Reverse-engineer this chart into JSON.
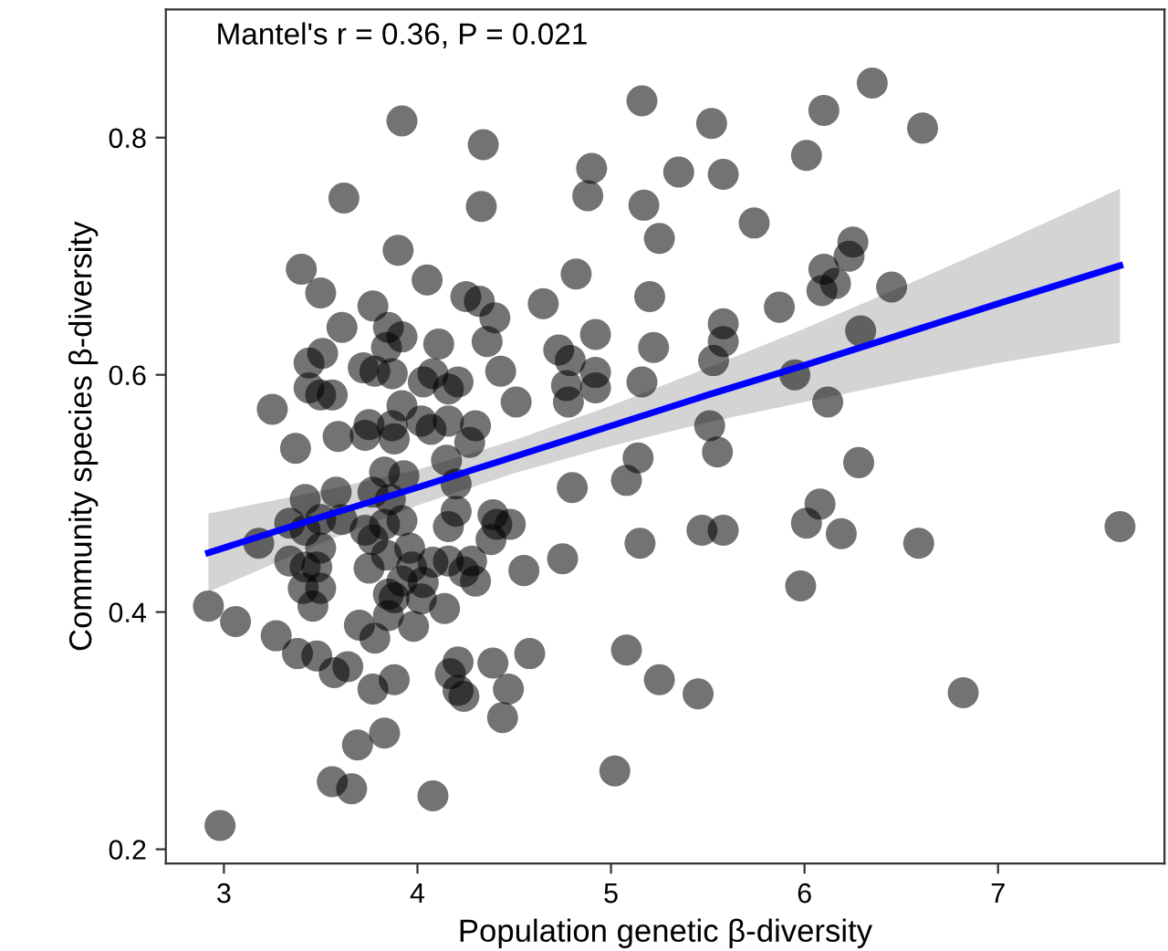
{
  "chart_data": {
    "type": "scatter",
    "xlabel": "Population genetic β-diversity",
    "ylabel": "Community species β-diversity",
    "annotations": [
      "Mantel's r = 0.36, P = 0.021"
    ],
    "xlim": [
      2.7,
      7.86
    ],
    "ylim": [
      0.188,
      0.908
    ],
    "xticks": [
      3,
      4,
      5,
      6,
      7
    ],
    "yticks": [
      0.2,
      0.4,
      0.6,
      0.8
    ],
    "grid": false,
    "legend": false,
    "marker": "circle",
    "series": [
      {
        "color": "#000000",
        "x": [
          3.92,
          4.34,
          3.62,
          4.33,
          3.9,
          3.4,
          4.05,
          3.5,
          4.25,
          4.32,
          3.77,
          4.4,
          3.61,
          3.85,
          3.92,
          4.11,
          4.36,
          3.84,
          3.51,
          3.44,
          3.72,
          3.78,
          3.87,
          4.08,
          4.43,
          4.03,
          4.21,
          3.44,
          3.5,
          3.56,
          4.16,
          3.25,
          3.92,
          3.75,
          3.87,
          4.02,
          4.16,
          4.3,
          3.59,
          3.73,
          3.88,
          4.07,
          3.37,
          4.27,
          5.16,
          6.1,
          5.52,
          4.9,
          5.35,
          5.58,
          6.01,
          4.88,
          5.17,
          5.25,
          5.74,
          4.82,
          4.65,
          5.2,
          6.1,
          6.16,
          6.09,
          6.25,
          6.23,
          5.87,
          4.73,
          4.79,
          4.92,
          5.58,
          5.58,
          5.53,
          5.22,
          4.77,
          4.92,
          4.92,
          5.16,
          5.95,
          4.51,
          4.78,
          6.12,
          5.51,
          5.55,
          5.14,
          6.35,
          6.61,
          6.45,
          6.29,
          6.28,
          4.15,
          3.83,
          3.93,
          4.2,
          3.58,
          3.42,
          3.77,
          3.86,
          3.18,
          3.34,
          3.42,
          3.5,
          3.61,
          3.73,
          3.77,
          3.83,
          3.92,
          4.2,
          4.16,
          4.39,
          4.41,
          4.38,
          3.5,
          3.84,
          3.96,
          3.34,
          3.42,
          3.48,
          3.75,
          3.97,
          4.08,
          4.16,
          4.24,
          4.28,
          4.3,
          3.92,
          4.03,
          3.41,
          3.5,
          3.85,
          3.88,
          3.46,
          4.02,
          4.14,
          2.92,
          3.06,
          3.85,
          3.7,
          3.98,
          3.78,
          3.27,
          3.38,
          3.48,
          3.57,
          3.64,
          4.21,
          4.39,
          4.17,
          4.21,
          4.24,
          3.88,
          3.77,
          4.47,
          4.44,
          3.83,
          3.69,
          3.56,
          3.66,
          4.08,
          2.98,
          5.08,
          4.8,
          4.48,
          5.47,
          5.58,
          5.15,
          4.75,
          4.55,
          6.01,
          6.08,
          6.19,
          5.98,
          4.58,
          5.08,
          5.25,
          5.45,
          5.02,
          6.59,
          7.63,
          6.82
        ],
        "values": [
          0.814,
          0.794,
          0.749,
          0.742,
          0.705,
          0.689,
          0.68,
          0.669,
          0.666,
          0.662,
          0.658,
          0.648,
          0.64,
          0.64,
          0.632,
          0.626,
          0.628,
          0.623,
          0.618,
          0.61,
          0.606,
          0.603,
          0.601,
          0.601,
          0.603,
          0.594,
          0.594,
          0.589,
          0.583,
          0.583,
          0.588,
          0.571,
          0.574,
          0.558,
          0.557,
          0.561,
          0.561,
          0.557,
          0.548,
          0.549,
          0.546,
          0.554,
          0.538,
          0.543,
          0.831,
          0.823,
          0.812,
          0.774,
          0.771,
          0.769,
          0.785,
          0.751,
          0.743,
          0.715,
          0.728,
          0.685,
          0.66,
          0.666,
          0.689,
          0.677,
          0.671,
          0.712,
          0.7,
          0.657,
          0.621,
          0.612,
          0.634,
          0.643,
          0.628,
          0.612,
          0.623,
          0.591,
          0.602,
          0.589,
          0.594,
          0.6,
          0.577,
          0.577,
          0.577,
          0.557,
          0.535,
          0.53,
          0.846,
          0.808,
          0.674,
          0.637,
          0.526,
          0.528,
          0.518,
          0.515,
          0.508,
          0.501,
          0.495,
          0.501,
          0.495,
          0.458,
          0.475,
          0.469,
          0.478,
          0.478,
          0.469,
          0.461,
          0.474,
          0.477,
          0.485,
          0.472,
          0.482,
          0.474,
          0.461,
          0.454,
          0.448,
          0.454,
          0.443,
          0.438,
          0.438,
          0.437,
          0.438,
          0.442,
          0.443,
          0.434,
          0.443,
          0.426,
          0.426,
          0.425,
          0.42,
          0.42,
          0.415,
          0.412,
          0.405,
          0.411,
          0.403,
          0.405,
          0.392,
          0.397,
          0.389,
          0.388,
          0.378,
          0.38,
          0.365,
          0.363,
          0.349,
          0.354,
          0.358,
          0.357,
          0.348,
          0.334,
          0.329,
          0.343,
          0.335,
          0.335,
          0.311,
          0.298,
          0.288,
          0.257,
          0.251,
          0.245,
          0.22,
          0.511,
          0.505,
          0.474,
          0.469,
          0.469,
          0.458,
          0.445,
          0.435,
          0.475,
          0.491,
          0.466,
          0.422,
          0.365,
          0.368,
          0.343,
          0.331,
          0.266,
          0.458,
          0.472,
          0.332
        ]
      },
      {
        "type": "line",
        "color": "#0000ff",
        "marker": "none",
        "line_style": "solid",
        "x": [
          2.92,
          3.5,
          4.0,
          4.5,
          5.0,
          5.5,
          6.0,
          6.5,
          7.0,
          7.63
        ],
        "values": [
          0.45,
          0.48,
          0.505,
          0.531,
          0.557,
          0.583,
          0.608,
          0.634,
          0.66,
          0.692
        ],
        "lower": [
          0.417,
          0.458,
          0.49,
          0.517,
          0.54,
          0.56,
          0.577,
          0.594,
          0.61,
          0.627
        ],
        "upper": [
          0.483,
          0.502,
          0.52,
          0.545,
          0.574,
          0.606,
          0.639,
          0.674,
          0.71,
          0.757
        ]
      }
    ]
  }
}
